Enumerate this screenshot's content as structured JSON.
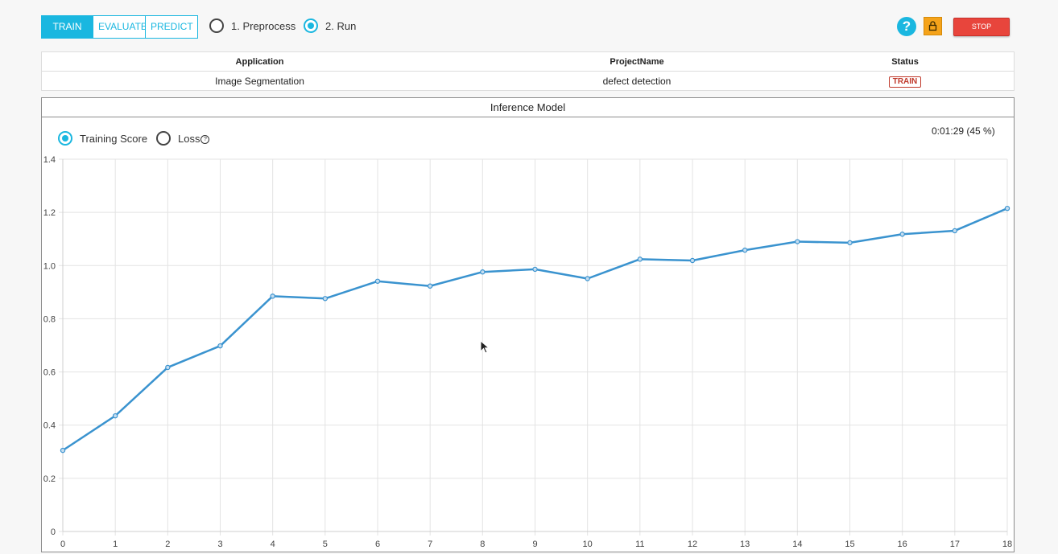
{
  "toolbar": {
    "tabs": [
      "TRAIN",
      "EVALUATE",
      "PREDICT"
    ],
    "active_tab": "TRAIN",
    "steps": [
      {
        "label": "1. Preprocess",
        "checked": false
      },
      {
        "label": "2. Run",
        "checked": true
      }
    ],
    "help_label": "?",
    "stop_label": "STOP"
  },
  "info_table": {
    "headers": [
      "Application",
      "ProjectName",
      "Status"
    ],
    "row": {
      "application": "Image Segmentation",
      "project": "defect detection",
      "status": "TRAIN"
    }
  },
  "panel": {
    "title": "Inference Model",
    "metrics": [
      {
        "label": "Training Score",
        "checked": true
      },
      {
        "label": "Loss",
        "checked": false
      }
    ],
    "progress": "0:01:29 (45 %)"
  },
  "colors": {
    "accent": "#1ab7e0",
    "line": "#3a93cf",
    "stop": "#e8453c",
    "lock": "#f5a31a",
    "status": "#c0392b"
  },
  "chart_data": {
    "type": "line",
    "x": [
      0,
      1,
      2,
      3,
      4,
      5,
      6,
      7,
      8,
      9,
      10,
      11,
      12,
      13,
      14,
      15,
      16,
      17,
      18
    ],
    "series": [
      {
        "values": [
          0.305,
          0.435,
          0.617,
          0.698,
          0.885,
          0.876,
          0.941,
          0.923,
          0.976,
          0.986,
          0.951,
          1.024,
          1.019,
          1.058,
          1.09,
          1.086,
          1.118,
          1.131,
          1.215
        ]
      }
    ],
    "xticks": [
      "0",
      "1",
      "2",
      "3",
      "4",
      "5",
      "6",
      "7",
      "8",
      "9",
      "10",
      "11",
      "12",
      "13",
      "14",
      "15",
      "16",
      "17",
      "18"
    ],
    "yticks": [
      "0",
      "0.2",
      "0.4",
      "0.6",
      "0.8",
      "1.0",
      "1.2",
      "1.4"
    ],
    "ylim": [
      0,
      1.4
    ],
    "xlim": [
      0,
      18
    ],
    "grid": true
  }
}
